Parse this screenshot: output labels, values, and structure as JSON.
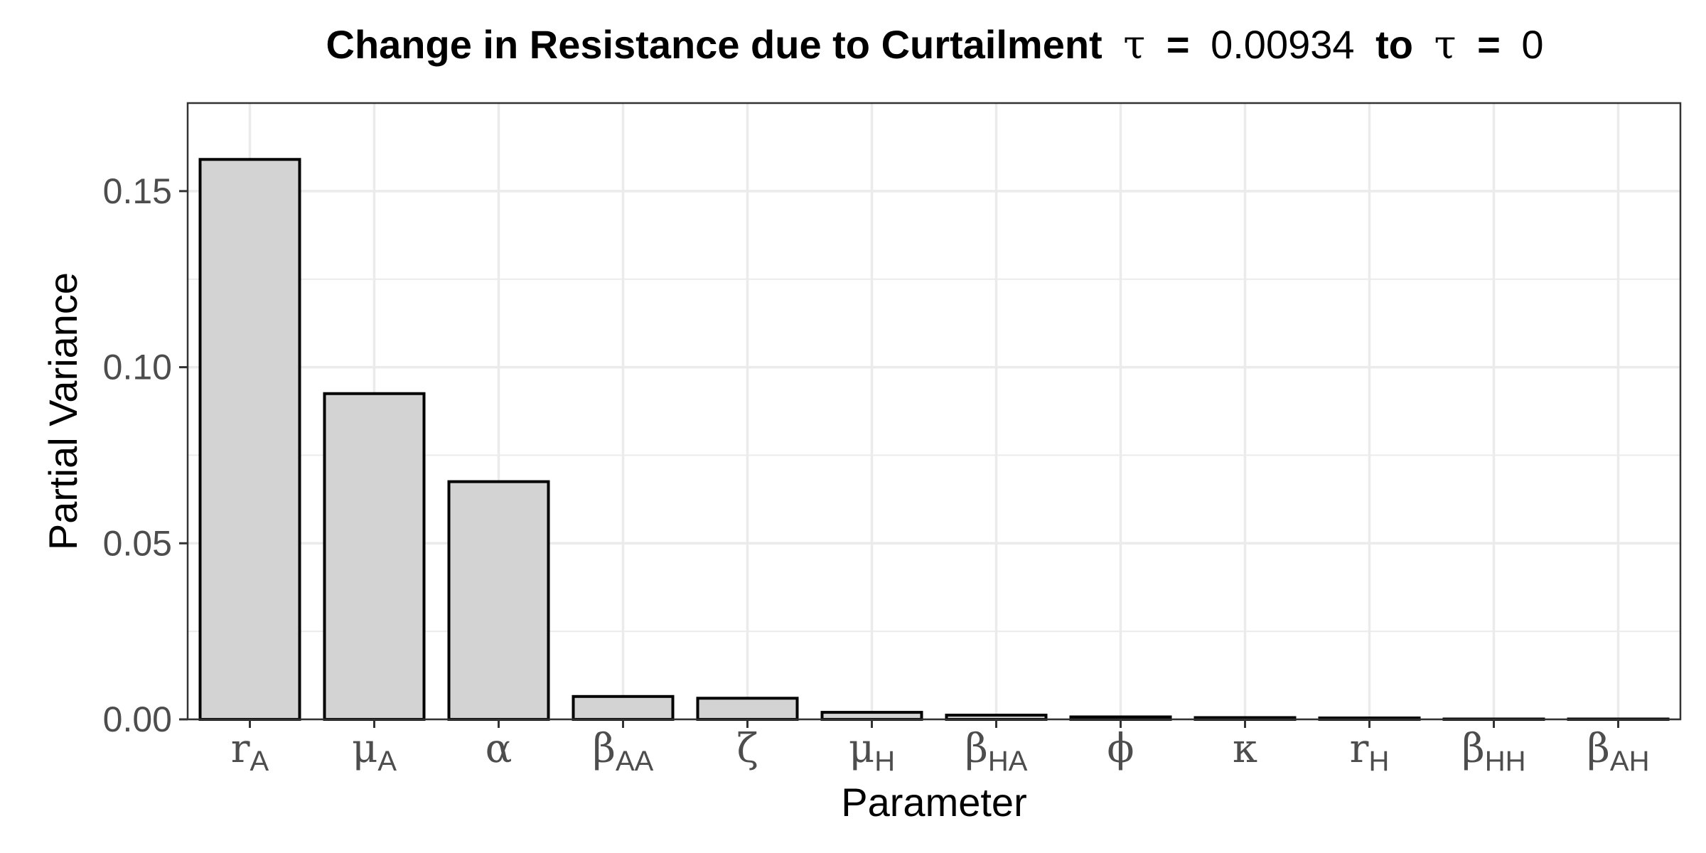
{
  "chart_data": {
    "type": "bar",
    "title": {
      "prefix": "Change in Resistance due to Curtailment",
      "symbol": "τ",
      "eq": "=",
      "from_value": "0.00934",
      "to_word": "to",
      "to_value": "0"
    },
    "xlabel": "Parameter",
    "ylabel": "Partial Variance",
    "ylim": [
      0,
      0.175
    ],
    "yticks": [
      0.0,
      0.05,
      0.1,
      0.15
    ],
    "ytick_labels": [
      "0.00",
      "0.05",
      "0.10",
      "0.15"
    ],
    "grid": true,
    "categories": [
      {
        "base": "r",
        "sub": "A"
      },
      {
        "base": "μ",
        "sub": "A"
      },
      {
        "base": "α",
        "sub": ""
      },
      {
        "base": "β",
        "sub": "AA"
      },
      {
        "base": "ζ",
        "sub": ""
      },
      {
        "base": "μ",
        "sub": "H"
      },
      {
        "base": "β",
        "sub": "HA"
      },
      {
        "base": "ϕ",
        "sub": ""
      },
      {
        "base": "κ",
        "sub": ""
      },
      {
        "base": "r",
        "sub": "H"
      },
      {
        "base": "β",
        "sub": "HH"
      },
      {
        "base": "β",
        "sub": "AH"
      }
    ],
    "values": [
      0.159,
      0.0925,
      0.0675,
      0.0065,
      0.006,
      0.002,
      0.0012,
      0.0007,
      0.0005,
      0.0004,
      0.0001,
      0.0001
    ],
    "bar_fill": "#d3d3d3",
    "bar_stroke": "#000000",
    "grid_color": "#ebebeb"
  }
}
